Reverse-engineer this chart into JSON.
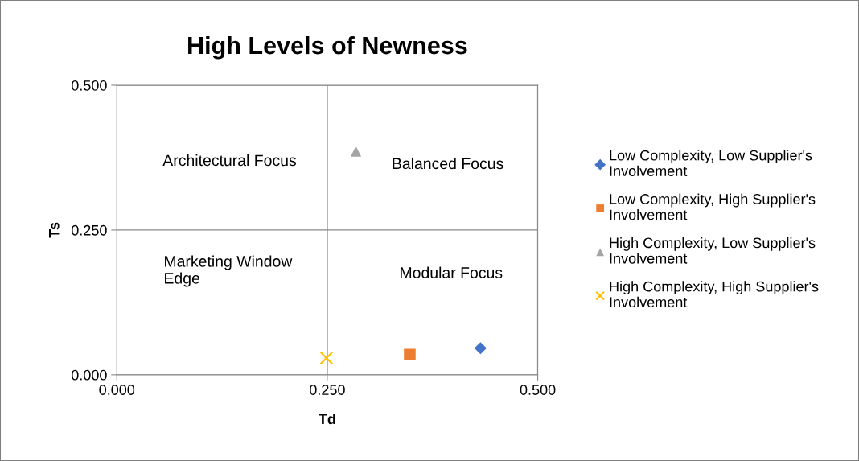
{
  "chart_data": {
    "type": "scatter",
    "title": "High Levels of Newness",
    "xlabel": "Td",
    "ylabel": "Ts",
    "xlim": [
      0,
      0.5
    ],
    "ylim": [
      0,
      0.5
    ],
    "xticks": [
      {
        "value": 0,
        "label": "0.000"
      },
      {
        "value": 0.25,
        "label": "0.250"
      },
      {
        "value": 0.5,
        "label": "0.500"
      }
    ],
    "yticks": [
      {
        "value": 0,
        "label": "0.000"
      },
      {
        "value": 0.25,
        "label": "0.250"
      },
      {
        "value": 0.5,
        "label": "0.500"
      }
    ],
    "grid": true,
    "legend": "right",
    "series": [
      {
        "name": "Low Complexity, Low Supplier's Involvement",
        "color": "#4472c4",
        "marker": "diamond",
        "x": [
          0.432
        ],
        "values": [
          0.046
        ]
      },
      {
        "name": "Low Complexity, High Supplier's Involvement",
        "color": "#ed7d31",
        "marker": "square",
        "x": [
          0.348
        ],
        "values": [
          0.035
        ]
      },
      {
        "name": "High Complexity, Low Supplier's Involvement",
        "color": "#a5a5a5",
        "marker": "triangle",
        "x": [
          0.284
        ],
        "values": [
          0.386
        ]
      },
      {
        "name": "High Complexity, High Supplier's Involvement",
        "color": "#ffc000",
        "marker": "cross",
        "x": [
          0.249
        ],
        "values": [
          0.029
        ]
      }
    ],
    "annotations": [
      "Architectural Focus",
      "Balanced Focus",
      "Marketing Window\nEdge",
      "Modular Focus"
    ]
  }
}
